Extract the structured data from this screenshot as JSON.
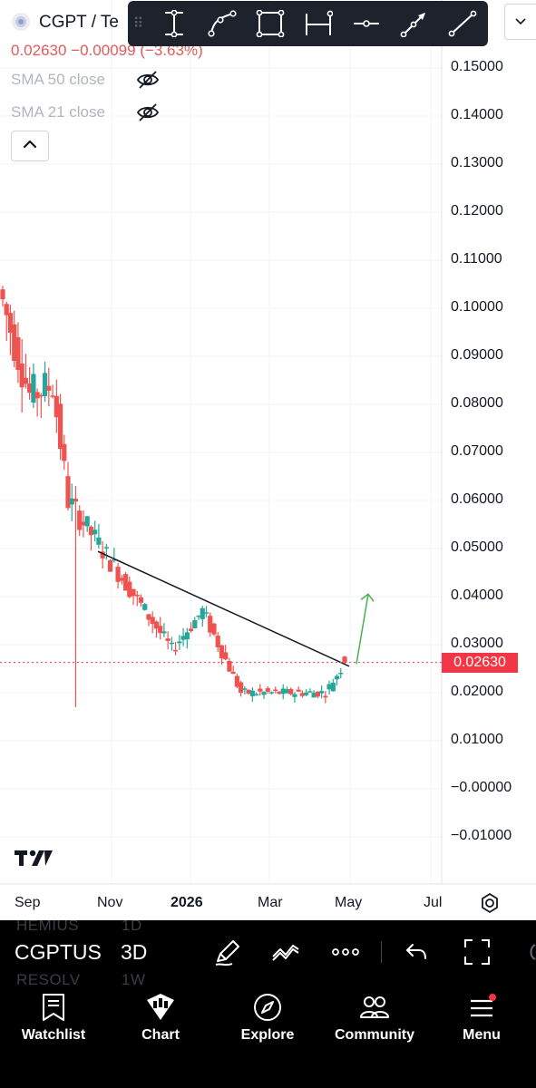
{
  "header": {
    "symbol_title": "CGPT / Te",
    "price_line": "0.02630 −0.00099 (−3.63%)",
    "indicators": [
      {
        "label": "SMA 50 close",
        "hidden_icon": "eye-off-icon"
      },
      {
        "label": "SMA 21 close",
        "hidden_icon": "eye-off-icon"
      }
    ],
    "collapse_icon": "chevron-up-icon"
  },
  "drawing_toolbar": {
    "tools": [
      "vertical-range-icon",
      "curve-icon",
      "rectangle-icon",
      "date-range-icon",
      "horizontal-ray-icon",
      "arrow-icon",
      "trendline-icon"
    ]
  },
  "price_axis": {
    "labels": [
      "0.15000",
      "0.14000",
      "0.13000",
      "0.12000",
      "0.11000",
      "0.10000",
      "0.09000",
      "0.08000",
      "0.07000",
      "0.06000",
      "0.05000",
      "0.04000",
      "0.03000",
      "0.02000",
      "0.01000",
      "−0.00000",
      "−0.01000"
    ],
    "current_price_tag": "0.02630"
  },
  "time_axis": {
    "labels": [
      "Sep",
      "Nov",
      "2026",
      "Mar",
      "May",
      "Jul"
    ]
  },
  "colors": {
    "up": "#26a69a",
    "down": "#ef5350",
    "price_tag": "#f23645",
    "projection_arrow": "#4caf50"
  },
  "chart_data": {
    "type": "candlestick",
    "ylim": [
      -0.015,
      0.155
    ],
    "price_decimals": 5,
    "current_price": 0.0263,
    "phases": [
      {
        "start": "Aug",
        "end": "late Aug",
        "open": 0.104,
        "close": 0.082,
        "note_direction": "down"
      },
      {
        "start": "late Aug",
        "end": "mid Sep",
        "open": 0.082,
        "close": 0.084,
        "note_direction": "flat"
      },
      {
        "start": "mid Sep",
        "end": "late Sep",
        "open": 0.084,
        "close": 0.06,
        "note_direction": "down"
      },
      {
        "start": "late Sep",
        "end": "Dec",
        "open": 0.06,
        "close": 0.029,
        "note_direction": "down"
      },
      {
        "start": "Dec",
        "end": "early Jan",
        "open": 0.029,
        "close": 0.037,
        "note_direction": "up"
      },
      {
        "start": "early Jan",
        "end": "early Feb",
        "open": 0.037,
        "close": 0.02,
        "note_direction": "down"
      },
      {
        "start": "early Feb",
        "end": "mid Apr",
        "open": 0.02,
        "close": 0.02,
        "note_direction": "flat"
      },
      {
        "start": "mid Apr",
        "end": "late Apr",
        "open": 0.02,
        "close": 0.0263,
        "note_direction": "up"
      }
    ],
    "notable_wick_low": 0.017,
    "trendline": {
      "from": [
        0.0494
      ],
      "to": [
        0.0255
      ]
    },
    "projection_arrow": {
      "from": 0.026,
      "to": 0.0405
    }
  },
  "bottom_strip": {
    "ghost_top": [
      "HEMIUS",
      "1D"
    ],
    "symbol": "CGPTUS",
    "interval": "3D",
    "ghost_bottom": [
      "RESOLV",
      "1W"
    ],
    "icons": [
      "pen-icon",
      "multi-line-icon",
      "more-dots-icon",
      "undo-icon",
      "fullscreen-icon"
    ]
  },
  "bottom_nav": [
    {
      "label": "Watchlist",
      "icon": "watchlist-icon"
    },
    {
      "label": "Chart",
      "icon": "chart-icon"
    },
    {
      "label": "Explore",
      "icon": "compass-icon"
    },
    {
      "label": "Community",
      "icon": "community-icon"
    },
    {
      "label": "Menu",
      "icon": "menu-icon"
    }
  ]
}
